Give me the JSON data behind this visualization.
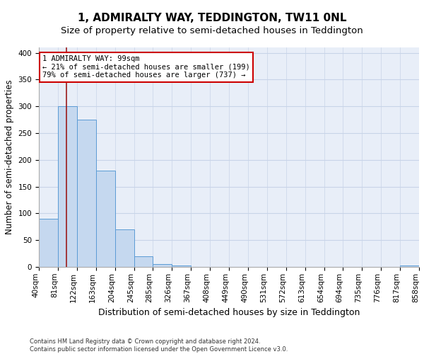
{
  "title": "1, ADMIRALTY WAY, TEDDINGTON, TW11 0NL",
  "subtitle": "Size of property relative to semi-detached houses in Teddington",
  "xlabel": "Distribution of semi-detached houses by size in Teddington",
  "ylabel": "Number of semi-detached properties",
  "footnote": "Contains HM Land Registry data © Crown copyright and database right 2024.\nContains public sector information licensed under the Open Government Licence v3.0.",
  "bar_edges": [
    40,
    81,
    122,
    163,
    204,
    245,
    285,
    326,
    367,
    408,
    449,
    490,
    531,
    572,
    613,
    654,
    694,
    735,
    776,
    817,
    858
  ],
  "bar_heights": [
    90,
    300,
    275,
    180,
    70,
    20,
    5,
    3,
    0,
    0,
    0,
    0,
    0,
    0,
    0,
    0,
    0,
    0,
    0,
    3
  ],
  "bar_color": "#c5d8ef",
  "bar_edge_color": "#5b9bd5",
  "property_size": 99,
  "property_label": "1 ADMIRALTY WAY: 99sqm",
  "pct_smaller": 21,
  "n_smaller": 199,
  "pct_larger": 79,
  "n_larger": 737,
  "vline_color": "#9b1b1b",
  "annotation_box_color": "#cc0000",
  "ylim": [
    0,
    410
  ],
  "yticks": [
    0,
    50,
    100,
    150,
    200,
    250,
    300,
    350,
    400
  ],
  "bg_color": "#e8eef8",
  "grid_color": "#c8d4e8",
  "title_fontsize": 11,
  "subtitle_fontsize": 9.5,
  "xlabel_fontsize": 9,
  "ylabel_fontsize": 8.5,
  "tick_fontsize": 7.5,
  "annotation_fontsize": 7.5,
  "footnote_fontsize": 6
}
